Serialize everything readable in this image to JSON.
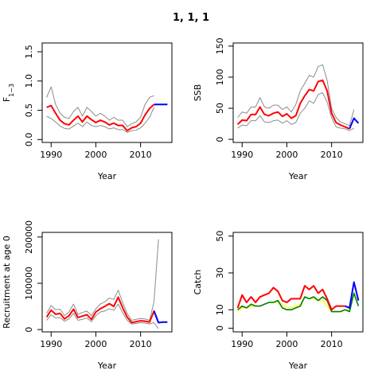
{
  "figure_title": "1, 1, 1",
  "chart_data": [
    {
      "type": "line",
      "xlabel": "Year",
      "ylabel_main": "F",
      "ylabel_sub": "1−3",
      "xlim": [
        1988,
        2017
      ],
      "ylim": [
        -0.05,
        1.65
      ],
      "x_ticks": [
        1990,
        2000,
        2010
      ],
      "y_ticks": [
        0.0,
        0.5,
        1.0,
        1.5
      ],
      "y_tick_labels": [
        "0.0",
        "0.5",
        "1.0",
        "1.5"
      ],
      "colors": {
        "estimate": "#ff0000",
        "bound": "#8c8c8c",
        "projection": "#0000ff"
      },
      "series": [
        {
          "role": "upper",
          "x": [
            1989,
            1990,
            1991,
            1992,
            1993,
            1994,
            1995,
            1996,
            1997,
            1998,
            1999,
            2000,
            2001,
            2002,
            2003,
            2004,
            2005,
            2006,
            2007,
            2008,
            2009,
            2010,
            2011,
            2012,
            2013
          ],
          "y": [
            0.72,
            0.9,
            0.6,
            0.45,
            0.38,
            0.36,
            0.48,
            0.55,
            0.4,
            0.55,
            0.48,
            0.4,
            0.45,
            0.4,
            0.33,
            0.38,
            0.33,
            0.33,
            0.22,
            0.27,
            0.3,
            0.38,
            0.6,
            0.72,
            0.75
          ]
        },
        {
          "role": "lower",
          "x": [
            1989,
            1990,
            1991,
            1992,
            1993,
            1994,
            1995,
            1996,
            1997,
            1998,
            1999,
            2000,
            2001,
            2002,
            2003,
            2004,
            2005,
            2006,
            2007,
            2008,
            2009,
            2010,
            2011,
            2012,
            2013
          ],
          "y": [
            0.4,
            0.36,
            0.3,
            0.23,
            0.19,
            0.18,
            0.23,
            0.28,
            0.22,
            0.3,
            0.24,
            0.22,
            0.24,
            0.22,
            0.18,
            0.2,
            0.17,
            0.17,
            0.12,
            0.15,
            0.16,
            0.2,
            0.28,
            0.38,
            0.55
          ]
        },
        {
          "role": "estimate",
          "x": [
            1989,
            1990,
            1991,
            1992,
            1993,
            1994,
            1995,
            1996,
            1997,
            1998,
            1999,
            2000,
            2001,
            2002,
            2003,
            2004,
            2005,
            2006,
            2007,
            2008,
            2009,
            2010,
            2011,
            2012,
            2013
          ],
          "y": [
            0.55,
            0.58,
            0.45,
            0.33,
            0.27,
            0.25,
            0.33,
            0.4,
            0.3,
            0.4,
            0.34,
            0.29,
            0.33,
            0.3,
            0.25,
            0.28,
            0.24,
            0.24,
            0.15,
            0.2,
            0.22,
            0.28,
            0.42,
            0.53,
            0.6
          ]
        },
        {
          "role": "projection",
          "x": [
            2013,
            2014,
            2015,
            2016
          ],
          "y": [
            0.6,
            0.6,
            0.6,
            0.6
          ]
        }
      ]
    },
    {
      "type": "line",
      "xlabel": "Year",
      "ylabel_main": "SSB",
      "ylabel_sub": "",
      "xlim": [
        1988,
        2017
      ],
      "ylim": [
        -5,
        155
      ],
      "x_ticks": [
        1990,
        2000,
        2010
      ],
      "y_ticks": [
        0,
        50,
        100,
        150
      ],
      "y_tick_labels": [
        "0",
        "50",
        "100",
        "150"
      ],
      "colors": {
        "estimate": "#ff0000",
        "bound": "#8c8c8c",
        "projection": "#0000ff"
      },
      "series": [
        {
          "role": "upper",
          "x": [
            1989,
            1990,
            1991,
            1992,
            1993,
            1994,
            1995,
            1996,
            1997,
            1998,
            1999,
            2000,
            2001,
            2002,
            2003,
            2004,
            2005,
            2006,
            2007,
            2008,
            2009,
            2010,
            2011,
            2012,
            2013,
            2014,
            2015
          ],
          "y": [
            35,
            44,
            42,
            52,
            52,
            67,
            52,
            50,
            55,
            55,
            48,
            52,
            44,
            56,
            78,
            90,
            103,
            100,
            117,
            120,
            95,
            50,
            35,
            28,
            25,
            22,
            48
          ]
        },
        {
          "role": "lower",
          "x": [
            1989,
            1990,
            1991,
            1992,
            1993,
            1994,
            1995,
            1996,
            1997,
            1998,
            1999,
            2000,
            2001,
            2002,
            2003,
            2004,
            2005,
            2006,
            2007,
            2008,
            2009,
            2010,
            2011,
            2012,
            2013,
            2014,
            2015
          ],
          "y": [
            18,
            23,
            22,
            30,
            30,
            38,
            28,
            27,
            30,
            31,
            26,
            30,
            24,
            27,
            42,
            50,
            62,
            58,
            72,
            75,
            60,
            35,
            20,
            18,
            17,
            14,
            18
          ]
        },
        {
          "role": "estimate",
          "x": [
            1989,
            1990,
            1991,
            1992,
            1993,
            1994,
            1995,
            1996,
            1997,
            1998,
            1999,
            2000,
            2001,
            2002,
            2003,
            2004,
            2005,
            2006,
            2007,
            2008,
            2009,
            2010,
            2011,
            2012,
            2013,
            2014
          ],
          "y": [
            24,
            31,
            30,
            40,
            40,
            52,
            40,
            38,
            42,
            44,
            37,
            41,
            34,
            38,
            58,
            70,
            80,
            78,
            93,
            95,
            78,
            42,
            27,
            23,
            20,
            17
          ]
        },
        {
          "role": "projection",
          "x": [
            2014,
            2015,
            2016
          ],
          "y": [
            17,
            34,
            26
          ]
        }
      ]
    },
    {
      "type": "line",
      "xlabel": "Year",
      "ylabel_main": "Recruitment at age 0",
      "ylabel_sub": "",
      "xlim": [
        1988,
        2017
      ],
      "ylim": [
        -5000,
        210000
      ],
      "x_ticks": [
        1990,
        2000,
        2010
      ],
      "y_ticks": [
        0,
        100000,
        200000
      ],
      "y_tick_labels": [
        "0",
        "100000",
        "200000"
      ],
      "colors": {
        "estimate": "#ff0000",
        "bound": "#8c8c8c",
        "projection": "#0000ff"
      },
      "series": [
        {
          "role": "upper",
          "x": [
            1989,
            1990,
            1991,
            1992,
            1993,
            1994,
            1995,
            1996,
            1997,
            1998,
            1999,
            2000,
            2001,
            2002,
            2003,
            2004,
            2005,
            2006,
            2007,
            2008,
            2009,
            2010,
            2011,
            2012,
            2013,
            2014
          ],
          "y": [
            35000,
            52000,
            43000,
            44000,
            30000,
            38000,
            55000,
            33000,
            37000,
            40000,
            30000,
            45000,
            55000,
            60000,
            68000,
            65000,
            85000,
            58000,
            35000,
            20000,
            22000,
            24000,
            23000,
            20000,
            60000,
            195000
          ]
        },
        {
          "role": "lower",
          "x": [
            1989,
            1990,
            1991,
            1992,
            1993,
            1994,
            1995,
            1996,
            1997,
            1998,
            1999,
            2000,
            2001,
            2002,
            2003,
            2004,
            2005,
            2006,
            2007,
            2008,
            2009,
            2010,
            2011,
            2012,
            2013,
            2014
          ],
          "y": [
            20000,
            32000,
            25000,
            26000,
            18000,
            23000,
            35000,
            20000,
            22000,
            25000,
            17000,
            30000,
            38000,
            40000,
            45000,
            42000,
            55000,
            36000,
            20000,
            12000,
            13000,
            15000,
            14000,
            12000,
            15000,
            2000
          ]
        },
        {
          "role": "estimate",
          "x": [
            1989,
            1990,
            1991,
            1992,
            1993,
            1994,
            1995,
            1996,
            1997,
            1998,
            1999,
            2000,
            2001,
            2002,
            2003,
            2004,
            2005,
            2006,
            2007,
            2008,
            2009,
            2010,
            2011,
            2012,
            2013,
            2014
          ],
          "y": [
            27000,
            42000,
            33000,
            35000,
            23000,
            30000,
            44000,
            26000,
            29000,
            32000,
            22000,
            38000,
            45000,
            50000,
            56000,
            50000,
            70000,
            47000,
            27000,
            15000,
            17000,
            19000,
            18000,
            16000,
            40000,
            15000
          ]
        },
        {
          "role": "projection",
          "x": [
            2013,
            2014,
            2015,
            2016
          ],
          "y": [
            40000,
            15000,
            16000,
            16000
          ]
        }
      ]
    },
    {
      "type": "line",
      "xlabel": "Year",
      "ylabel_main": "Catch",
      "ylabel_sub": "",
      "xlim": [
        1988,
        2017
      ],
      "ylim": [
        -2,
        52
      ],
      "x_ticks": [
        1990,
        2000,
        2010
      ],
      "y_ticks": [
        0,
        10,
        30,
        50
      ],
      "y_tick_labels": [
        "0",
        "10",
        "30",
        "50"
      ],
      "colors": {
        "estimate": "#ff0000",
        "observed": "#007f00",
        "yellow": "#ffff00",
        "projection": "#0000ff"
      },
      "series": [
        {
          "role": "yellow",
          "x": [
            1989,
            1990,
            1991,
            1992,
            1993,
            1994,
            1995,
            1996,
            1997,
            1998,
            1999,
            2000,
            2001,
            2002,
            2003,
            2004,
            2005,
            2006,
            2007,
            2008,
            2009,
            2010,
            2011,
            2012,
            2013,
            2014
          ],
          "y": [
            9,
            11,
            11,
            12,
            12,
            12,
            13,
            14,
            14,
            14,
            13,
            11,
            11,
            12,
            13,
            17,
            16,
            16,
            15,
            15,
            12,
            9,
            9,
            9,
            10,
            10
          ]
        },
        {
          "role": "observed",
          "x": [
            1989,
            1990,
            1991,
            1992,
            1993,
            1994,
            1995,
            1996,
            1997,
            1998,
            1999,
            2000,
            2001,
            2002,
            2003,
            2004,
            2005,
            2006,
            2007,
            2008,
            2009,
            2010,
            2011,
            2012,
            2013,
            2014,
            2015,
            2016
          ],
          "y": [
            10,
            12,
            11,
            13,
            12,
            12,
            13,
            14,
            14,
            15,
            11,
            10,
            10,
            11,
            12,
            17,
            16,
            17,
            15,
            17,
            15,
            9,
            9,
            9,
            10,
            9,
            19,
            12
          ]
        },
        {
          "role": "estimate",
          "x": [
            1989,
            1990,
            1991,
            1992,
            1993,
            1994,
            1995,
            1996,
            1997,
            1998,
            1999,
            2000,
            2001,
            2002,
            2003,
            2004,
            2005,
            2006,
            2007,
            2008,
            2009,
            2010,
            2011,
            2012,
            2013
          ],
          "y": [
            11,
            18,
            14,
            17,
            14,
            17,
            18,
            19,
            22,
            20,
            15,
            14,
            16,
            16,
            16,
            23,
            21,
            23,
            19,
            21,
            16,
            10,
            12,
            12,
            12
          ]
        },
        {
          "role": "projection",
          "x": [
            2013,
            2014,
            2015,
            2016
          ],
          "y": [
            12,
            11,
            25,
            15
          ]
        }
      ]
    }
  ]
}
